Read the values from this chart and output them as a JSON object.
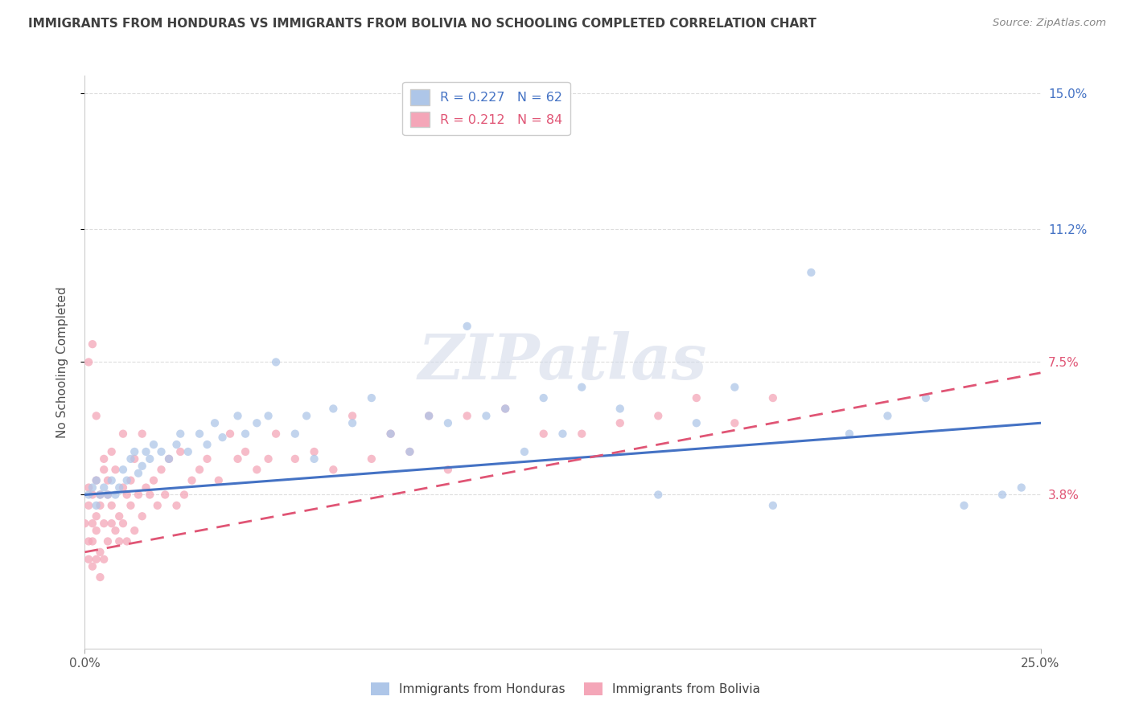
{
  "title": "IMMIGRANTS FROM HONDURAS VS IMMIGRANTS FROM BOLIVIA NO SCHOOLING COMPLETED CORRELATION CHART",
  "source_text": "Source: ZipAtlas.com",
  "ylabel": "No Schooling Completed",
  "xlim": [
    0.0,
    0.25
  ],
  "ylim": [
    -0.005,
    0.155
  ],
  "plot_ylim": [
    0.0,
    0.15
  ],
  "xtick_positions": [
    0.0,
    0.25
  ],
  "xtick_labels": [
    "0.0%",
    "25.0%"
  ],
  "ytick_values": [
    0.038,
    0.075,
    0.112,
    0.15
  ],
  "ytick_labels": [
    "3.8%",
    "7.5%",
    "11.2%",
    "15.0%"
  ],
  "ytick_right_colors": [
    "#e05575",
    "#e05575",
    "#4472c4",
    "#4472c4"
  ],
  "legend_entries": [
    {
      "label": "R = 0.227   N = 62",
      "color": "#aec6e8",
      "text_color": "#4472c4"
    },
    {
      "label": "R = 0.212   N = 84",
      "color": "#f4a6b8",
      "text_color": "#e05575"
    }
  ],
  "watermark": "ZIPatlas",
  "series_honduras": {
    "color": "#aec6e8",
    "trend_color": "#4472c4",
    "trend_x": [
      0.0,
      0.25
    ],
    "trend_y": [
      0.038,
      0.058
    ],
    "scatter_x": [
      0.001,
      0.002,
      0.003,
      0.003,
      0.004,
      0.005,
      0.006,
      0.007,
      0.008,
      0.009,
      0.01,
      0.011,
      0.012,
      0.013,
      0.014,
      0.015,
      0.016,
      0.017,
      0.018,
      0.02,
      0.022,
      0.024,
      0.025,
      0.027,
      0.03,
      0.032,
      0.034,
      0.036,
      0.04,
      0.042,
      0.045,
      0.048,
      0.05,
      0.055,
      0.058,
      0.06,
      0.065,
      0.07,
      0.075,
      0.08,
      0.085,
      0.09,
      0.095,
      0.1,
      0.105,
      0.11,
      0.115,
      0.12,
      0.125,
      0.13,
      0.14,
      0.15,
      0.16,
      0.17,
      0.18,
      0.19,
      0.2,
      0.21,
      0.22,
      0.23,
      0.24,
      0.245
    ],
    "scatter_y": [
      0.038,
      0.04,
      0.035,
      0.042,
      0.038,
      0.04,
      0.038,
      0.042,
      0.038,
      0.04,
      0.045,
      0.042,
      0.048,
      0.05,
      0.044,
      0.046,
      0.05,
      0.048,
      0.052,
      0.05,
      0.048,
      0.052,
      0.055,
      0.05,
      0.055,
      0.052,
      0.058,
      0.054,
      0.06,
      0.055,
      0.058,
      0.06,
      0.075,
      0.055,
      0.06,
      0.048,
      0.062,
      0.058,
      0.065,
      0.055,
      0.05,
      0.06,
      0.058,
      0.085,
      0.06,
      0.062,
      0.05,
      0.065,
      0.055,
      0.068,
      0.062,
      0.038,
      0.058,
      0.068,
      0.035,
      0.1,
      0.055,
      0.06,
      0.065,
      0.035,
      0.038,
      0.04
    ]
  },
  "series_bolivia": {
    "color": "#f4a6b8",
    "trend_color": "#e05575",
    "trend_x": [
      0.0,
      0.25
    ],
    "trend_y": [
      0.022,
      0.072
    ],
    "scatter_x": [
      0.0,
      0.001,
      0.001,
      0.001,
      0.001,
      0.002,
      0.002,
      0.002,
      0.002,
      0.003,
      0.003,
      0.003,
      0.003,
      0.004,
      0.004,
      0.004,
      0.005,
      0.005,
      0.005,
      0.005,
      0.006,
      0.006,
      0.006,
      0.007,
      0.007,
      0.007,
      0.008,
      0.008,
      0.009,
      0.009,
      0.01,
      0.01,
      0.01,
      0.011,
      0.011,
      0.012,
      0.012,
      0.013,
      0.013,
      0.014,
      0.015,
      0.015,
      0.016,
      0.017,
      0.018,
      0.019,
      0.02,
      0.021,
      0.022,
      0.024,
      0.025,
      0.026,
      0.028,
      0.03,
      0.032,
      0.035,
      0.038,
      0.04,
      0.042,
      0.045,
      0.048,
      0.05,
      0.055,
      0.06,
      0.065,
      0.07,
      0.075,
      0.08,
      0.085,
      0.09,
      0.095,
      0.1,
      0.11,
      0.12,
      0.13,
      0.14,
      0.15,
      0.16,
      0.17,
      0.18,
      0.001,
      0.002,
      0.003,
      0.004
    ],
    "scatter_y": [
      0.03,
      0.025,
      0.035,
      0.02,
      0.04,
      0.03,
      0.025,
      0.038,
      0.018,
      0.032,
      0.028,
      0.02,
      0.042,
      0.035,
      0.022,
      0.038,
      0.03,
      0.045,
      0.02,
      0.048,
      0.038,
      0.025,
      0.042,
      0.035,
      0.03,
      0.05,
      0.028,
      0.045,
      0.032,
      0.025,
      0.04,
      0.03,
      0.055,
      0.038,
      0.025,
      0.042,
      0.035,
      0.048,
      0.028,
      0.038,
      0.032,
      0.055,
      0.04,
      0.038,
      0.042,
      0.035,
      0.045,
      0.038,
      0.048,
      0.035,
      0.05,
      0.038,
      0.042,
      0.045,
      0.048,
      0.042,
      0.055,
      0.048,
      0.05,
      0.045,
      0.048,
      0.055,
      0.048,
      0.05,
      0.045,
      0.06,
      0.048,
      0.055,
      0.05,
      0.06,
      0.045,
      0.06,
      0.062,
      0.055,
      0.055,
      0.058,
      0.06,
      0.065,
      0.058,
      0.065,
      0.075,
      0.08,
      0.06,
      0.015
    ]
  },
  "background_color": "#ffffff",
  "grid_color": "#dddddd",
  "title_color": "#404040",
  "axis_label_color": "#505050"
}
